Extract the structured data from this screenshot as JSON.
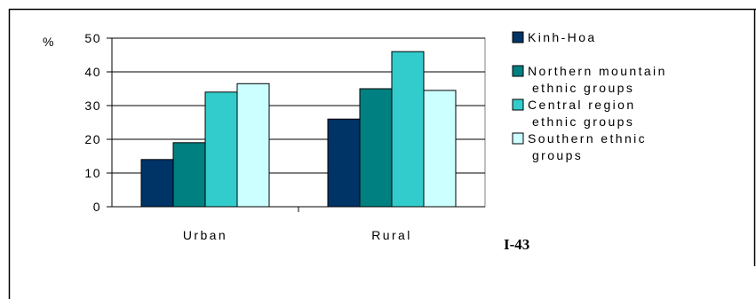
{
  "chart_data": {
    "type": "bar",
    "ylabel": "%",
    "ylim": [
      0,
      50
    ],
    "yticks": [
      0,
      10,
      20,
      30,
      40,
      50
    ],
    "grid": true,
    "legend_position": "right",
    "categories": [
      "Urban",
      "Rural"
    ],
    "series": [
      {
        "name": "Kinh-Hoa",
        "color": "#003366",
        "values": [
          14,
          26
        ]
      },
      {
        "name": "Northern mountain ethnic groups",
        "color": "#008080",
        "values": [
          19,
          35
        ]
      },
      {
        "name": "Central region ethnic groups",
        "color": "#33CCCC",
        "values": [
          34,
          46
        ]
      },
      {
        "name": "Southern ethnic groups",
        "color": "#CCFFFF",
        "values": [
          36.5,
          34.5
        ]
      }
    ],
    "legend_lines": [
      [
        "Kinh-Hoa"
      ],
      [
        "Northern mountain",
        "ethnic groups"
      ],
      [
        "Central region",
        "ethnic groups"
      ],
      [
        "Southern ethnic",
        "groups"
      ]
    ],
    "annotation": "I-43"
  }
}
